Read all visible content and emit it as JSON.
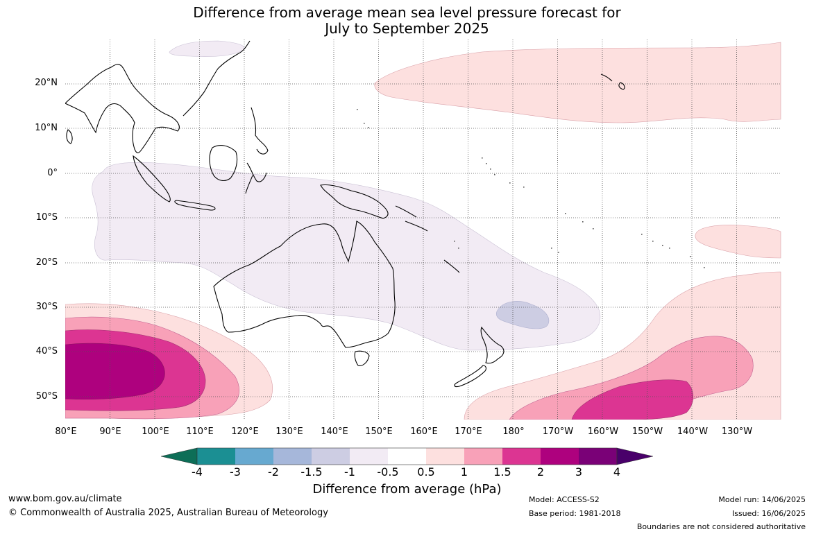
{
  "title": {
    "line1": "Difference from average mean sea level pressure forecast for",
    "line2": "July to September 2025"
  },
  "map": {
    "lat_labels": [
      "20°N",
      "10°N",
      "0°",
      "10°S",
      "20°S",
      "30°S",
      "40°S",
      "50°S"
    ],
    "lon_labels": [
      "80°E",
      "90°E",
      "100°E",
      "110°E",
      "120°E",
      "130°E",
      "140°E",
      "150°E",
      "160°E",
      "170°E",
      "180°",
      "170°W",
      "160°W",
      "150°W",
      "140°W",
      "130°W"
    ],
    "features": [
      {
        "name": "north-pacific-high-anomaly",
        "class": "0.5 to 1"
      },
      {
        "name": "australia-low-anomaly",
        "class": "-0.5 to -1"
      },
      {
        "name": "tasman-low-anomaly",
        "class": "-1 to -1.5"
      },
      {
        "name": "south-indian-ocean-high-anomaly",
        "max_class": "2 to 3"
      },
      {
        "name": "south-pacific-high-anomaly",
        "max_class": "1.5 to 2"
      },
      {
        "name": "east-pacific-small-high-anomaly",
        "class": "0.5 to 1"
      }
    ],
    "colors": {
      "n4": "#0d6e57",
      "n3": "#1b8f93",
      "n2": "#67a9d0",
      "n15": "#a6b7da",
      "n1": "#cdcde3",
      "n05": "#f2ebf4",
      "zero": "#ffffff",
      "p05": "#fde0df",
      "p1": "#f8a1b8",
      "p15": "#dc3592",
      "p2": "#ae017e",
      "p3": "#7a0177",
      "p4": "#49006a"
    }
  },
  "colorbar": {
    "ticks": [
      "-4",
      "-3",
      "-2",
      "-1.5",
      "-1",
      "-0.5",
      "0.5",
      "1",
      "1.5",
      "2",
      "3",
      "4"
    ],
    "label": "Difference from average (hPa)"
  },
  "footer": {
    "website": "www.bom.gov.au/climate",
    "copyright": "© Commonwealth of Australia 2025, Australian Bureau of Meteorology",
    "model": "Model: ACCESS-S2",
    "base_period": "Base period: 1981-2018",
    "model_run": "Model run: 14/06/2025",
    "issued": "Issued: 16/06/2025",
    "disclaimer": "Boundaries are not considered authoritative"
  }
}
